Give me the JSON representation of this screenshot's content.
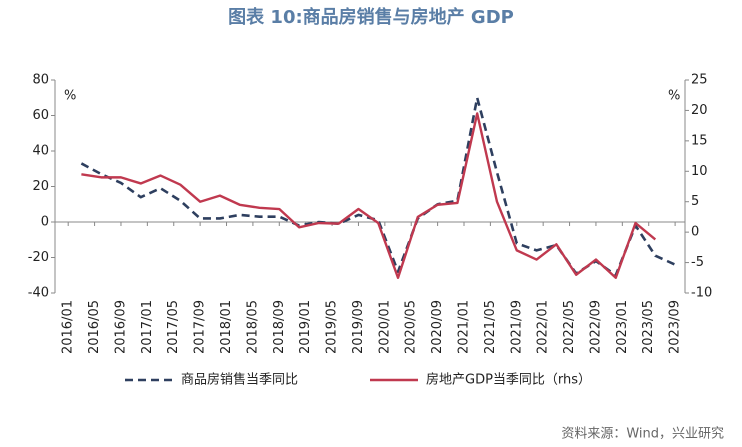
{
  "chart_data": {
    "type": "line",
    "title": "图表 10:商品房销售与房地产 GDP",
    "y_unit": "%",
    "y2_unit": "%",
    "source": "资料来源：Wind，兴业研究",
    "xlim": [
      -2,
      93.5
    ],
    "xticks": [
      {
        "value": 0,
        "label": "2016/01"
      },
      {
        "value": 4,
        "label": "2016/05"
      },
      {
        "value": 8,
        "label": "2016/09"
      },
      {
        "value": 12,
        "label": "2017/01"
      },
      {
        "value": 16,
        "label": "2017/05"
      },
      {
        "value": 20,
        "label": "2017/09"
      },
      {
        "value": 24,
        "label": "2018/01"
      },
      {
        "value": 28,
        "label": "2018/05"
      },
      {
        "value": 32,
        "label": "2018/09"
      },
      {
        "value": 36,
        "label": "2019/01"
      },
      {
        "value": 40,
        "label": "2019/05"
      },
      {
        "value": 44,
        "label": "2019/09"
      },
      {
        "value": 48,
        "label": "2020/01"
      },
      {
        "value": 52,
        "label": "2020/05"
      },
      {
        "value": 56,
        "label": "2020/09"
      },
      {
        "value": 60,
        "label": "2021/01"
      },
      {
        "value": 64,
        "label": "2021/05"
      },
      {
        "value": 68,
        "label": "2021/09"
      },
      {
        "value": 72,
        "label": "2022/01"
      },
      {
        "value": 76,
        "label": "2022/05"
      },
      {
        "value": 80,
        "label": "2022/09"
      },
      {
        "value": 84,
        "label": "2023/01"
      },
      {
        "value": 88,
        "label": "2023/05"
      },
      {
        "value": 92,
        "label": "2023/09"
      }
    ],
    "ylim": [
      -40,
      80
    ],
    "yticks": [
      -40,
      -20,
      0,
      20,
      40,
      60,
      80
    ],
    "y2lim": [
      -10,
      25
    ],
    "y2ticks": [
      -10,
      -5,
      0,
      5,
      10,
      15,
      20,
      25
    ],
    "series": [
      {
        "name": "商品房销售当季同比",
        "color": "#2e3f5f",
        "dash": true,
        "x": [
          2,
          5,
          8,
          11,
          14,
          17,
          20,
          23,
          26,
          29,
          32,
          35,
          38,
          41,
          44,
          47,
          50,
          53,
          56,
          59,
          62,
          65,
          68,
          71,
          74,
          77,
          80,
          83,
          86,
          89,
          92
        ],
        "values": [
          33,
          27,
          22,
          14,
          19,
          12,
          2,
          2,
          4,
          3,
          3,
          -2,
          0,
          -1,
          4,
          1,
          -28,
          2,
          10,
          12,
          70,
          28,
          -12,
          -16,
          -13,
          -29,
          -22,
          -30,
          -2,
          -19,
          -24
        ]
      },
      {
        "name": "房地产GDP当季同比（rhs）",
        "color": "#c0394f",
        "dash": false,
        "axis": "y2",
        "x": [
          2,
          5,
          8,
          11,
          14,
          17,
          20,
          23,
          26,
          29,
          32,
          35,
          38,
          41,
          44,
          47,
          50,
          53,
          56,
          59,
          62,
          65,
          68,
          71,
          74,
          77,
          80,
          83,
          86,
          89
        ],
        "values": [
          9.5,
          9,
          9,
          8,
          9.3,
          7.8,
          5,
          6,
          4.5,
          4,
          3.8,
          0.8,
          1.5,
          1.4,
          3.8,
          1.5,
          -7.5,
          2.5,
          4.5,
          4.8,
          19.5,
          5,
          -3,
          -4.5,
          -2,
          -7,
          -4.5,
          -7.5,
          1.5,
          -1.2
        ]
      }
    ]
  }
}
